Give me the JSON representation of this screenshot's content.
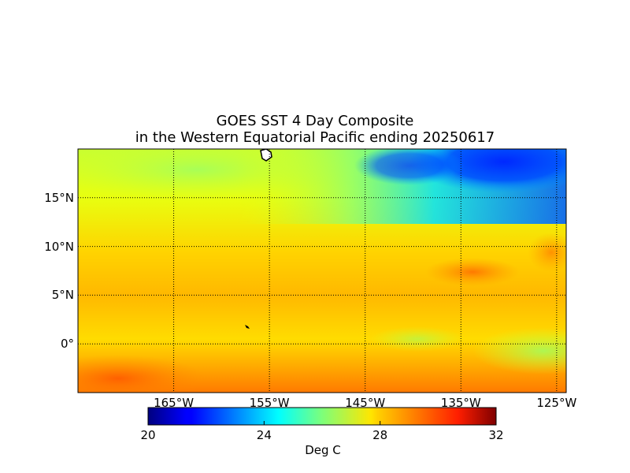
{
  "title_line1": "GOES SST 4 Day Composite",
  "title_line2": "in the Western Equatorial Pacific ending 20250617",
  "map": {
    "lon_range": [
      -175,
      -124
    ],
    "lat_range": [
      -5,
      20
    ],
    "lat_ticks": [
      {
        "lat": 15,
        "label": "15°N"
      },
      {
        "lat": 10,
        "label": "10°N"
      },
      {
        "lat": 5,
        "label": "5°N"
      },
      {
        "lat": 0,
        "label": "0°"
      }
    ],
    "lon_ticks": [
      {
        "lon": -165,
        "label": "165°W"
      },
      {
        "lon": -155,
        "label": "155°W"
      },
      {
        "lon": -145,
        "label": "145°W"
      },
      {
        "lon": -135,
        "label": "135°W"
      },
      {
        "lon": -125,
        "label": "125°W"
      }
    ],
    "gridlines": "dotted"
  },
  "colorbar": {
    "min": 20,
    "max": 32,
    "ticks": [
      "20",
      "24",
      "28",
      "32"
    ],
    "label": "Deg C",
    "colormap": "jet"
  }
}
